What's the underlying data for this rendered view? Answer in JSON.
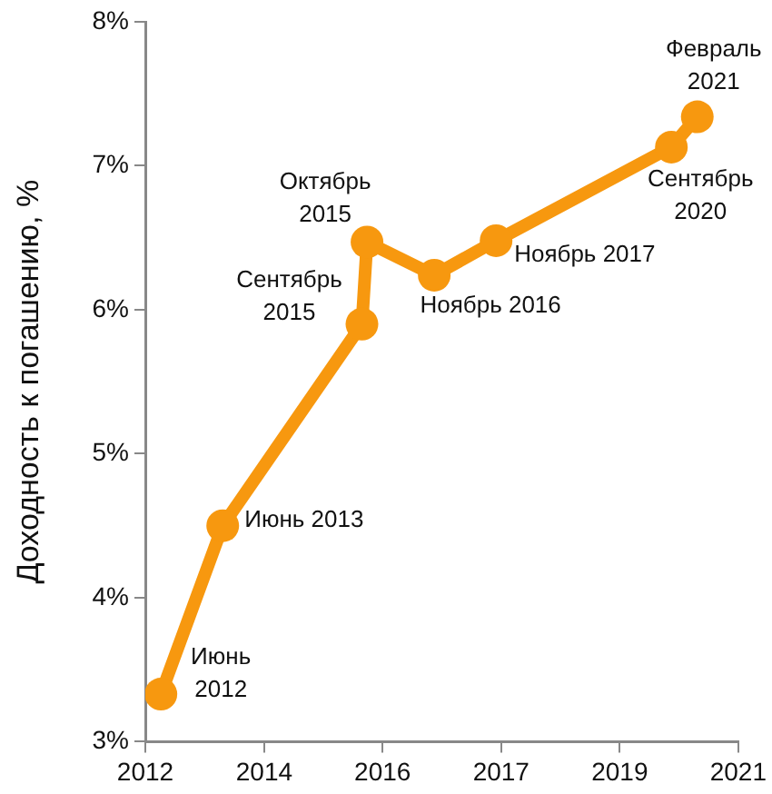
{
  "chart_data": {
    "type": "line",
    "ylabel": "Доходность к погашению, %",
    "x": [
      "2012-06",
      "2013-06",
      "2015-09",
      "2015-10",
      "2016-11",
      "2017-11",
      "2020-09",
      "2021-02"
    ],
    "series": [
      {
        "color": "#f7980f",
        "values": [
          3.33,
          4.5,
          5.9,
          6.47,
          6.24,
          6.48,
          7.13,
          7.34
        ]
      }
    ],
    "xlim": [
      "2012-03",
      "2021-10"
    ],
    "xticks": [
      {
        "value": "2012-03",
        "label": "2012"
      },
      {
        "value": "2014-02",
        "label": "2014"
      },
      {
        "value": "2016-01",
        "label": "2016"
      },
      {
        "value": "2017-12",
        "label": "2017"
      },
      {
        "value": "2019-11",
        "label": "2019"
      },
      {
        "value": "2021-10",
        "label": "2021"
      }
    ],
    "ylim": [
      3,
      8
    ],
    "yticks": [
      {
        "value": 3,
        "label": "3%"
      },
      {
        "value": 4,
        "label": "4%"
      },
      {
        "value": 5,
        "label": "5%"
      },
      {
        "value": 6,
        "label": "6%"
      },
      {
        "value": 7,
        "label": "7%"
      },
      {
        "value": 8,
        "label": "8%"
      }
    ],
    "annotations": [
      {
        "text": "Июнь 2012",
        "x": "2012-06",
        "y": 3.33
      },
      {
        "text": "Июнь 2013",
        "x": "2013-06",
        "y": 4.5
      },
      {
        "text": "Сентябрь 2015",
        "x": "2015-09",
        "y": 5.9
      },
      {
        "text": "Октябрь 2015",
        "x": "2015-10",
        "y": 6.47
      },
      {
        "text": "Ноябрь 2016",
        "x": "2016-11",
        "y": 6.24
      },
      {
        "text": "Ноябрь 2017",
        "x": "2017-11",
        "y": 6.48
      },
      {
        "text": "Сентябрь 2020",
        "x": "2020-09",
        "y": 7.13
      },
      {
        "text": "Февраль 2021",
        "x": "2021-02",
        "y": 7.34
      }
    ],
    "grid": false,
    "legend": false,
    "marker": "circle",
    "line_style": "solid"
  }
}
